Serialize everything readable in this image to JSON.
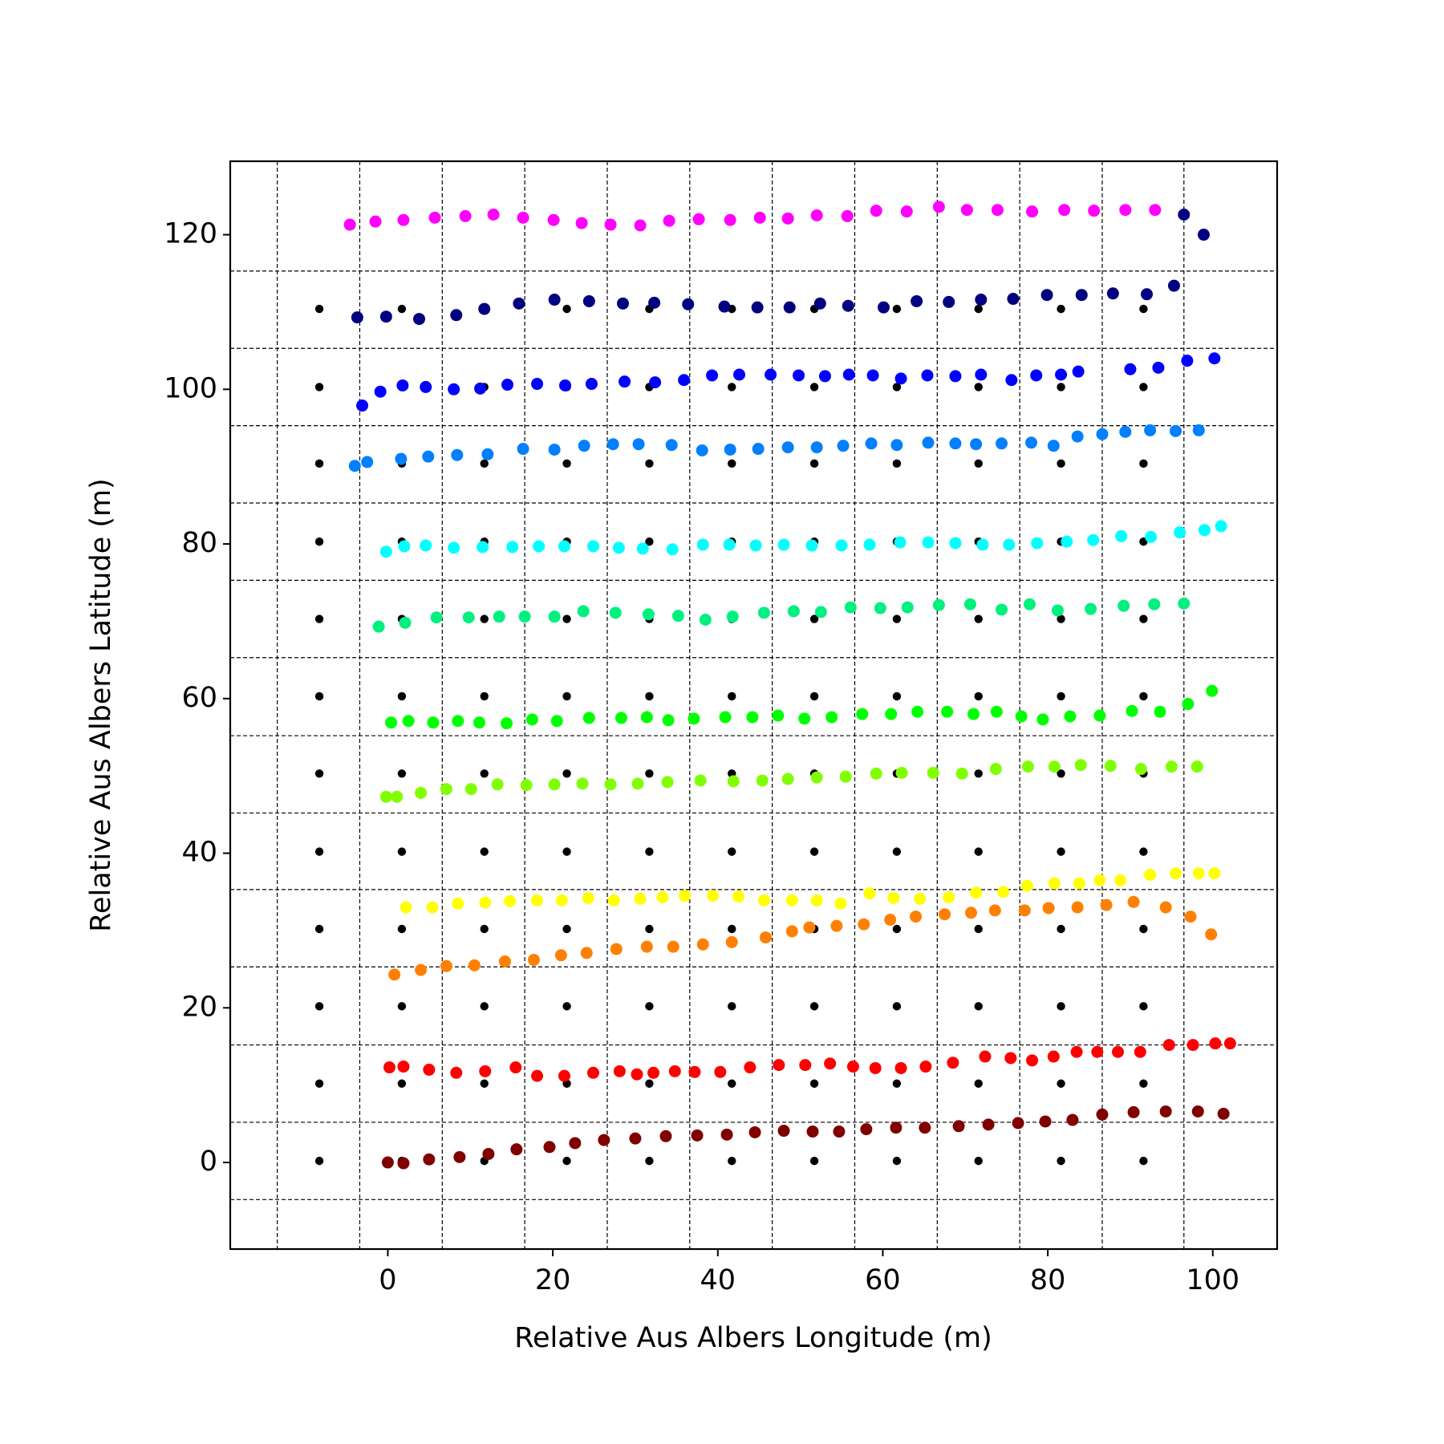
{
  "chart_data": {
    "type": "scatter",
    "x_label": "Relative Aus Albers Longitude (m)",
    "y_label": "Relative Aus Albers Latitude (m)",
    "xlim": [
      -19.1,
      107.8
    ],
    "ylim": [
      -11.2,
      129.5
    ],
    "xticks": [
      0,
      20,
      40,
      60,
      80,
      100
    ],
    "yticks": [
      0,
      20,
      40,
      60,
      80,
      100,
      120
    ],
    "xgrid": [
      -13.4,
      -3.4,
      6.6,
      16.6,
      26.6,
      36.6,
      46.6,
      56.6,
      66.6,
      76.6,
      86.6,
      96.5
    ],
    "ygrid": [
      115.3,
      105.3,
      95.3,
      85.3,
      75.3,
      65.3,
      55.2,
      45.2,
      35.3,
      25.3,
      15.2,
      5.2,
      -4.8
    ],
    "grid": true,
    "series": [
      {
        "color": "#000000",
        "x": [
          -8.3,
          1.7,
          11.7,
          21.7,
          31.7,
          41.7,
          51.7,
          61.7,
          71.6,
          81.6,
          91.6,
          -8.3,
          1.7,
          11.7,
          21.7,
          31.7,
          41.7,
          51.7,
          61.7,
          71.6,
          81.6,
          91.6,
          -8.3,
          1.7,
          11.7,
          21.7,
          31.7,
          41.7,
          51.7,
          61.7,
          71.6,
          81.6,
          91.6,
          -8.3,
          1.7,
          11.7,
          21.7,
          31.7,
          41.7,
          51.7,
          61.7,
          71.6,
          81.6,
          91.6,
          -8.3,
          1.7,
          11.7,
          21.7,
          31.7,
          41.7,
          51.7,
          61.7,
          71.6,
          81.6,
          91.6,
          -8.3,
          1.7,
          11.7,
          21.7,
          31.7,
          41.7,
          51.7,
          61.7,
          71.6,
          81.6,
          91.6,
          -8.3,
          1.7,
          11.7,
          21.7,
          31.7,
          41.7,
          51.7,
          61.7,
          71.6,
          81.6,
          91.6,
          -8.3,
          1.7,
          11.7,
          21.7,
          31.7,
          41.7,
          51.7,
          61.7,
          71.6,
          81.6,
          91.6,
          -8.3,
          1.7,
          11.7,
          21.7,
          31.7,
          41.7,
          51.7,
          61.7,
          71.6,
          81.6,
          91.6,
          -8.3,
          1.7,
          11.7,
          21.7,
          31.7,
          41.7,
          51.7,
          61.7,
          71.6,
          81.6,
          91.6,
          -8.3,
          1.7,
          11.7,
          21.7,
          31.7,
          41.7,
          51.7,
          61.7,
          71.6,
          81.6,
          91.6,
          -8.3,
          1.7,
          11.7,
          21.7,
          31.7,
          41.7,
          51.7,
          61.7,
          71.6,
          81.6,
          91.6
        ],
        "y": [
          0.2,
          0.2,
          0.2,
          0.2,
          0.2,
          0.2,
          0.2,
          0.2,
          0.2,
          0.2,
          0.2,
          10.2,
          10.2,
          10.2,
          10.2,
          10.2,
          10.2,
          10.2,
          10.2,
          10.2,
          10.2,
          10.2,
          20.2,
          20.2,
          20.2,
          20.2,
          20.2,
          20.2,
          20.2,
          20.2,
          20.2,
          20.2,
          20.2,
          30.2,
          30.2,
          30.2,
          30.2,
          30.2,
          30.2,
          30.2,
          30.2,
          30.2,
          30.2,
          30.2,
          40.2,
          40.2,
          40.2,
          40.2,
          40.2,
          40.2,
          40.2,
          40.2,
          40.2,
          40.2,
          40.2,
          50.3,
          50.3,
          50.3,
          50.3,
          50.3,
          50.3,
          50.3,
          50.3,
          50.3,
          50.3,
          50.3,
          60.3,
          60.3,
          60.3,
          60.3,
          60.3,
          60.3,
          60.3,
          60.3,
          60.3,
          60.3,
          60.3,
          70.3,
          70.3,
          70.3,
          70.3,
          70.3,
          70.3,
          70.3,
          70.3,
          70.3,
          70.3,
          70.3,
          80.3,
          80.3,
          80.3,
          80.3,
          80.3,
          80.3,
          80.3,
          80.3,
          80.3,
          80.3,
          80.3,
          90.4,
          90.4,
          90.4,
          90.4,
          90.4,
          90.4,
          90.4,
          90.4,
          90.4,
          90.4,
          90.4,
          100.3,
          100.3,
          100.3,
          100.3,
          100.3,
          100.3,
          100.3,
          100.3,
          100.3,
          100.3,
          100.3,
          110.4,
          110.4,
          110.4,
          110.4,
          110.4,
          110.4,
          110.4,
          110.4,
          110.4,
          110.4,
          110.4
        ]
      },
      {
        "color": "#800000",
        "x": [
          0,
          1.9,
          5.0,
          8.7,
          12.2,
          15.6,
          19.6,
          22.7,
          26.2,
          30.0,
          33.7,
          37.5,
          41.1,
          44.5,
          48.0,
          51.5,
          54.7,
          58.0,
          61.6,
          65.1,
          69.2,
          72.8,
          76.4,
          79.7,
          83.0,
          86.6,
          90.4,
          94.3,
          98.2,
          101.3
        ],
        "y": [
          0,
          -0.1,
          0.4,
          0.7,
          1.1,
          1.7,
          2.0,
          2.5,
          2.9,
          3.1,
          3.4,
          3.5,
          3.6,
          3.9,
          4.1,
          4.0,
          4.0,
          4.3,
          4.5,
          4.5,
          4.7,
          4.9,
          5.1,
          5.3,
          5.5,
          6.2,
          6.5,
          6.6,
          6.6,
          6.3
        ]
      },
      {
        "color": "#ff0000",
        "x": [
          0.2,
          1.9,
          5.0,
          8.3,
          11.8,
          15.5,
          18.1,
          21.4,
          24.9,
          28.1,
          30.2,
          32.2,
          34.8,
          37.2,
          40.3,
          43.9,
          47.4,
          50.6,
          53.6,
          56.4,
          59.1,
          62.2,
          65.2,
          68.5,
          72.4,
          75.5,
          78.1,
          80.7,
          83.5,
          86.0,
          88.5,
          91.2,
          94.7,
          97.6,
          100.3,
          102.1
        ],
        "y": [
          12.3,
          12.4,
          12.0,
          11.6,
          11.8,
          12.3,
          11.2,
          11.2,
          11.6,
          11.8,
          11.4,
          11.6,
          11.8,
          11.7,
          11.7,
          12.3,
          12.6,
          12.6,
          12.8,
          12.4,
          12.2,
          12.2,
          12.4,
          12.9,
          13.7,
          13.5,
          13.2,
          13.7,
          14.3,
          14.3,
          14.3,
          14.3,
          15.2,
          15.2,
          15.4,
          15.4
        ]
      },
      {
        "color": "#ff8000",
        "x": [
          0.8,
          4.0,
          7.1,
          10.5,
          14.2,
          17.7,
          21.0,
          24.1,
          27.7,
          31.4,
          34.6,
          38.2,
          41.7,
          45.8,
          49.0,
          51.1,
          54.4,
          57.7,
          60.9,
          64.0,
          67.5,
          70.7,
          73.6,
          77.2,
          80.1,
          83.6,
          87.1,
          90.4,
          94.3,
          97.3,
          99.8
        ],
        "y": [
          24.3,
          24.9,
          25.4,
          25.5,
          26.0,
          26.2,
          26.8,
          27.1,
          27.6,
          27.9,
          27.9,
          28.2,
          28.5,
          29.1,
          29.9,
          30.4,
          30.6,
          30.8,
          31.4,
          31.8,
          32.1,
          32.3,
          32.6,
          32.6,
          32.9,
          33.0,
          33.3,
          33.7,
          33.0,
          31.8,
          29.5
        ]
      },
      {
        "color": "#ffff00",
        "x": [
          2.2,
          5.4,
          8.5,
          11.8,
          14.8,
          18.1,
          21.1,
          24.3,
          27.4,
          30.6,
          33.3,
          36.0,
          39.4,
          42.5,
          45.6,
          49.0,
          52.0,
          54.9,
          58.4,
          61.3,
          64.5,
          68.0,
          71.3,
          74.6,
          77.5,
          80.8,
          83.8,
          86.3,
          88.8,
          92.4,
          95.5,
          98.3,
          100.2
        ],
        "y": [
          33.0,
          33.0,
          33.5,
          33.6,
          33.8,
          33.9,
          33.9,
          34.2,
          33.9,
          34.1,
          34.3,
          34.5,
          34.5,
          34.4,
          33.9,
          33.9,
          33.9,
          33.5,
          34.8,
          34.2,
          34.1,
          34.3,
          34.9,
          35.0,
          35.8,
          36.1,
          36.1,
          36.5,
          36.5,
          37.2,
          37.4,
          37.4,
          37.4
        ]
      },
      {
        "color": "#80ff00",
        "x": [
          -0.2,
          1.1,
          4.0,
          7.1,
          10.1,
          13.3,
          16.8,
          20.2,
          23.6,
          27.0,
          30.3,
          33.9,
          37.9,
          41.9,
          45.4,
          48.5,
          52.0,
          55.5,
          59.2,
          62.3,
          66.1,
          69.6,
          73.7,
          77.6,
          80.8,
          84.0,
          87.6,
          91.3,
          95.0,
          98.1
        ],
        "y": [
          47.3,
          47.3,
          47.8,
          48.3,
          48.3,
          48.9,
          48.8,
          48.9,
          49.0,
          48.9,
          49.0,
          49.2,
          49.4,
          49.3,
          49.4,
          49.6,
          49.8,
          49.9,
          50.3,
          50.4,
          50.4,
          50.3,
          50.9,
          51.2,
          51.2,
          51.4,
          51.3,
          50.9,
          51.2,
          51.2
        ]
      },
      {
        "color": "#00ff00",
        "x": [
          0.4,
          2.5,
          5.5,
          8.5,
          11.1,
          14.4,
          17.5,
          20.5,
          24.4,
          28.3,
          31.4,
          34.0,
          37.1,
          40.9,
          44.2,
          47.3,
          50.5,
          53.8,
          57.5,
          61.0,
          64.2,
          67.8,
          71.0,
          73.8,
          76.8,
          79.4,
          82.7,
          86.3,
          90.2,
          93.6,
          97.0,
          99.9
        ],
        "y": [
          56.9,
          57.1,
          56.9,
          57.1,
          56.9,
          56.8,
          57.3,
          57.1,
          57.5,
          57.5,
          57.6,
          57.2,
          57.4,
          57.6,
          57.6,
          57.8,
          57.4,
          57.6,
          58.0,
          58.0,
          58.3,
          58.3,
          58.0,
          58.3,
          57.7,
          57.3,
          57.7,
          57.8,
          58.4,
          58.3,
          59.3,
          61.0
        ]
      },
      {
        "color": "#00f080",
        "x": [
          -1.1,
          2.1,
          5.9,
          9.8,
          13.5,
          16.6,
          20.2,
          23.7,
          27.6,
          31.6,
          35.2,
          38.5,
          41.8,
          45.6,
          49.2,
          52.5,
          56.1,
          59.7,
          63.0,
          66.8,
          70.6,
          74.4,
          77.8,
          81.2,
          85.2,
          89.2,
          92.9,
          96.5
        ],
        "y": [
          69.3,
          69.8,
          70.5,
          70.5,
          70.6,
          70.6,
          70.6,
          71.3,
          71.1,
          70.9,
          70.7,
          70.2,
          70.6,
          71.1,
          71.3,
          71.2,
          71.8,
          71.7,
          71.8,
          72.1,
          72.2,
          71.5,
          72.2,
          71.4,
          71.6,
          72.0,
          72.2,
          72.3
        ]
      },
      {
        "color": "#00ffff",
        "x": [
          -0.2,
          2.0,
          4.6,
          8.0,
          11.5,
          15.1,
          18.3,
          21.4,
          24.9,
          28.0,
          30.9,
          34.5,
          38.2,
          41.4,
          44.6,
          48.0,
          51.4,
          55.0,
          58.4,
          62.1,
          65.5,
          68.8,
          72.1,
          75.3,
          78.7,
          82.3,
          85.5,
          88.9,
          92.5,
          96.0,
          99.0,
          101.0
        ],
        "y": [
          79.0,
          79.7,
          79.8,
          79.5,
          79.6,
          79.6,
          79.7,
          79.7,
          79.7,
          79.5,
          79.4,
          79.3,
          79.9,
          79.9,
          79.8,
          79.9,
          79.8,
          79.8,
          79.9,
          80.2,
          80.2,
          80.1,
          79.9,
          79.9,
          80.1,
          80.3,
          80.5,
          81.0,
          80.9,
          81.5,
          81.8,
          82.3
        ]
      },
      {
        "color": "#0080ff",
        "x": [
          -4.0,
          -2.5,
          1.6,
          4.9,
          8.4,
          12.1,
          16.4,
          20.2,
          23.8,
          27.3,
          30.4,
          34.4,
          38.1,
          41.5,
          44.9,
          48.5,
          52.0,
          55.2,
          58.6,
          61.7,
          65.5,
          68.8,
          71.3,
          74.4,
          78.0,
          80.7,
          83.6,
          86.6,
          89.4,
          92.4,
          95.5,
          98.3
        ],
        "y": [
          90.1,
          90.6,
          91.0,
          91.3,
          91.5,
          91.6,
          92.3,
          92.2,
          92.7,
          92.9,
          92.9,
          92.8,
          92.1,
          92.2,
          92.3,
          92.5,
          92.5,
          92.7,
          93.0,
          92.8,
          93.1,
          93.0,
          92.9,
          93.0,
          93.1,
          92.7,
          93.9,
          94.2,
          94.5,
          94.7,
          94.6,
          94.7
        ]
      },
      {
        "color": "#0000ff",
        "x": [
          -3.1,
          -0.9,
          1.8,
          4.6,
          8.0,
          11.2,
          14.5,
          18.1,
          21.5,
          24.7,
          28.7,
          32.4,
          35.9,
          39.3,
          42.6,
          46.4,
          49.8,
          53.0,
          55.9,
          58.8,
          62.2,
          65.4,
          68.8,
          71.9,
          75.6,
          78.6,
          81.6,
          83.7,
          90.0,
          93.4,
          96.9,
          100.2
        ],
        "y": [
          97.9,
          99.7,
          100.5,
          100.3,
          100.0,
          100.1,
          100.6,
          100.7,
          100.5,
          100.7,
          101.0,
          100.9,
          101.2,
          101.8,
          101.9,
          101.9,
          101.8,
          101.7,
          101.9,
          101.8,
          101.4,
          101.8,
          101.7,
          101.9,
          101.2,
          101.8,
          101.9,
          102.3,
          102.6,
          102.8,
          103.7,
          104.0
        ]
      },
      {
        "color": "#000080",
        "x": [
          -3.7,
          -0.2,
          3.8,
          8.3,
          11.7,
          15.9,
          20.2,
          24.4,
          28.5,
          32.3,
          36.4,
          40.8,
          44.8,
          48.7,
          52.4,
          55.8,
          60.1,
          64.1,
          68.0,
          71.9,
          75.8,
          79.9,
          84.1,
          87.9,
          92.0,
          95.3,
          96.5,
          98.9
        ],
        "y": [
          109.3,
          109.4,
          109.1,
          109.6,
          110.4,
          111.1,
          111.6,
          111.4,
          111.1,
          111.2,
          111.0,
          110.7,
          110.6,
          110.6,
          111.1,
          110.8,
          110.6,
          111.4,
          111.3,
          111.6,
          111.7,
          112.2,
          112.2,
          112.4,
          112.3,
          113.4,
          122.6,
          120.0
        ]
      },
      {
        "color": "#ff00ff",
        "x": [
          -4.6,
          -1.5,
          1.9,
          5.7,
          9.4,
          12.8,
          16.4,
          20.1,
          23.5,
          27.0,
          30.6,
          34.1,
          37.7,
          41.5,
          45.1,
          48.5,
          52.0,
          55.7,
          59.2,
          62.9,
          66.8,
          70.2,
          73.9,
          78.1,
          82.0,
          85.6,
          89.4,
          93.0
        ],
        "y": [
          121.3,
          121.7,
          121.9,
          122.2,
          122.4,
          122.6,
          122.2,
          121.9,
          121.5,
          121.3,
          121.2,
          121.8,
          122.0,
          121.9,
          122.2,
          122.1,
          122.5,
          122.4,
          123.1,
          123.0,
          123.6,
          123.2,
          123.2,
          123.0,
          123.2,
          123.1,
          123.2,
          123.2
        ]
      }
    ]
  }
}
